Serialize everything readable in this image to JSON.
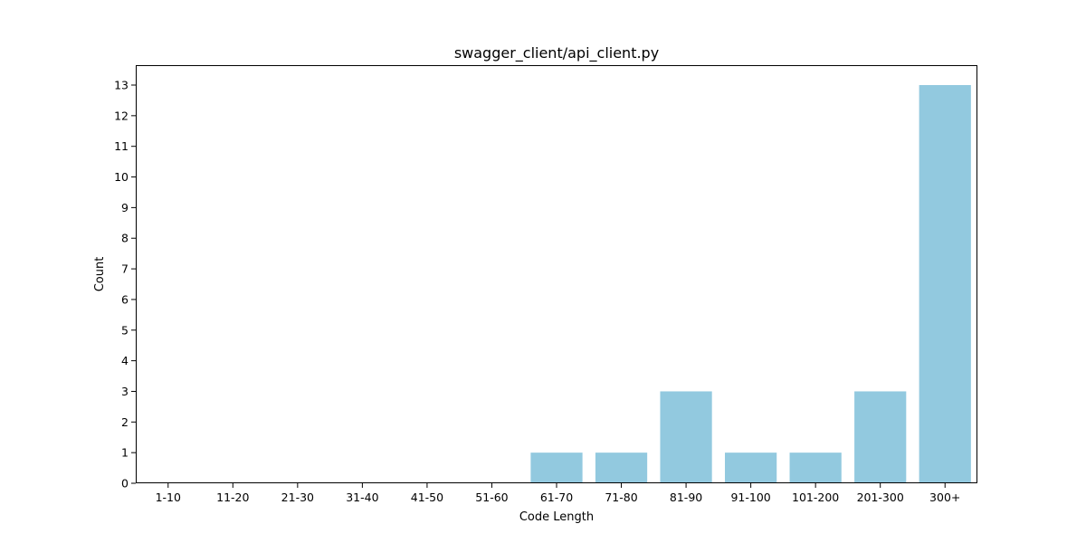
{
  "chart_data": {
    "type": "bar",
    "title": "swagger_client/api_client.py",
    "xlabel": "Code Length",
    "ylabel": "Count",
    "categories": [
      "1-10",
      "11-20",
      "21-30",
      "31-40",
      "41-50",
      "51-60",
      "61-70",
      "71-80",
      "81-90",
      "91-100",
      "101-200",
      "201-300",
      "300+"
    ],
    "values": [
      0,
      0,
      0,
      0,
      0,
      0,
      1,
      1,
      3,
      1,
      1,
      3,
      13
    ],
    "ylim": [
      0,
      13.65
    ],
    "yticks": [
      0,
      1,
      2,
      3,
      4,
      5,
      6,
      7,
      8,
      9,
      10,
      11,
      12,
      13
    ],
    "grid": false,
    "legend": "none",
    "bar_color": "#92c9df"
  }
}
